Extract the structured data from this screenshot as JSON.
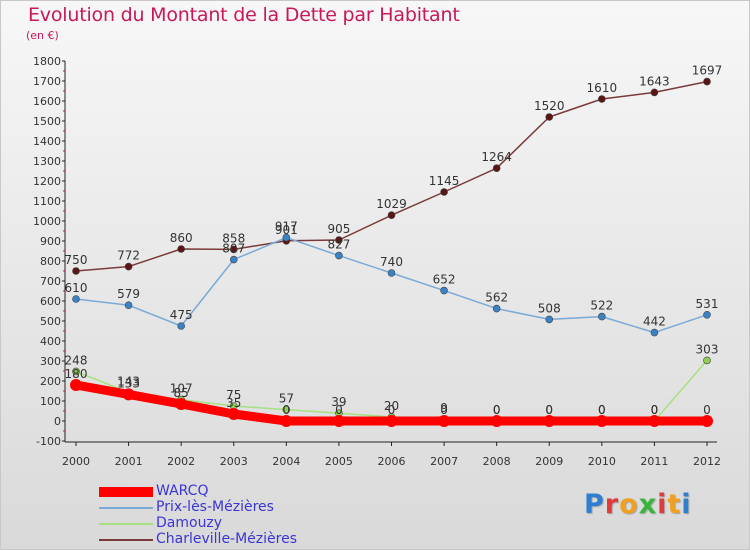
{
  "chart_data": {
    "type": "line",
    "title": "Evolution du Montant de la Dette par Habitant",
    "subtitle": "(en €)",
    "categories": [
      "2000",
      "2001",
      "2002",
      "2003",
      "2004",
      "2005",
      "2006",
      "2007",
      "2008",
      "2009",
      "2010",
      "2011",
      "2012"
    ],
    "ylim": [
      -100,
      1800
    ],
    "y_ticks": [
      "-100",
      "0",
      "100",
      "200",
      "300",
      "400",
      "500",
      "600",
      "700",
      "800",
      "900",
      "1000",
      "1100",
      "1200",
      "1300",
      "1400",
      "1500",
      "1600",
      "1700",
      "1800"
    ],
    "grid": false,
    "legend_position": "bottom-left",
    "series": [
      {
        "name": "WARCQ",
        "color": "#ff0000",
        "point_color": "#ff0000",
        "values": [
          180,
          133,
          85,
          35,
          0,
          0,
          0,
          0,
          0,
          0,
          0,
          0,
          0
        ],
        "labels": [
          "180",
          "133",
          "85",
          "35",
          "0",
          "0",
          "0",
          "0",
          "0",
          "0",
          "0",
          "0",
          "0"
        ]
      },
      {
        "name": "Prix-lès-Mézières",
        "color": "#7aaad6",
        "point_color": "#3b82c4",
        "values": [
          610,
          579,
          475,
          807,
          917,
          827,
          740,
          652,
          562,
          508,
          522,
          442,
          531
        ],
        "labels": [
          "610",
          "579",
          "475",
          "807",
          "917",
          "827",
          "740",
          "652",
          "562",
          "508",
          "522",
          "442",
          "531"
        ]
      },
      {
        "name": "Damouzy",
        "color": "#a6e080",
        "point_color": "#8fd14f",
        "values": [
          248,
          143,
          107,
          75,
          57,
          39,
          20,
          9,
          0,
          0,
          0,
          0,
          303
        ],
        "labels": [
          "248",
          "143",
          "107",
          "75",
          "57",
          "39",
          "20",
          "9",
          "0",
          "0",
          "0",
          "0",
          "303"
        ]
      },
      {
        "name": "Charleville-Mézières",
        "color": "#7a3a3a",
        "point_color": "#5a1515",
        "values": [
          750,
          772,
          860,
          858,
          901,
          905,
          1029,
          1145,
          1264,
          1520,
          1610,
          1643,
          1697
        ],
        "labels": [
          "750",
          "772",
          "860",
          "858",
          "901",
          "905",
          "1029",
          "1145",
          "1264",
          "1520",
          "1610",
          "1643",
          "1697"
        ]
      }
    ]
  },
  "logo": {
    "letters": [
      "P",
      "r",
      "o",
      "x",
      "i",
      "t",
      "i"
    ],
    "colors": [
      "#2f7fd0",
      "#e23a3a",
      "#f0a020",
      "#3bb43b",
      "#e23a3a",
      "#f0a020",
      "#2f7fd0"
    ]
  }
}
